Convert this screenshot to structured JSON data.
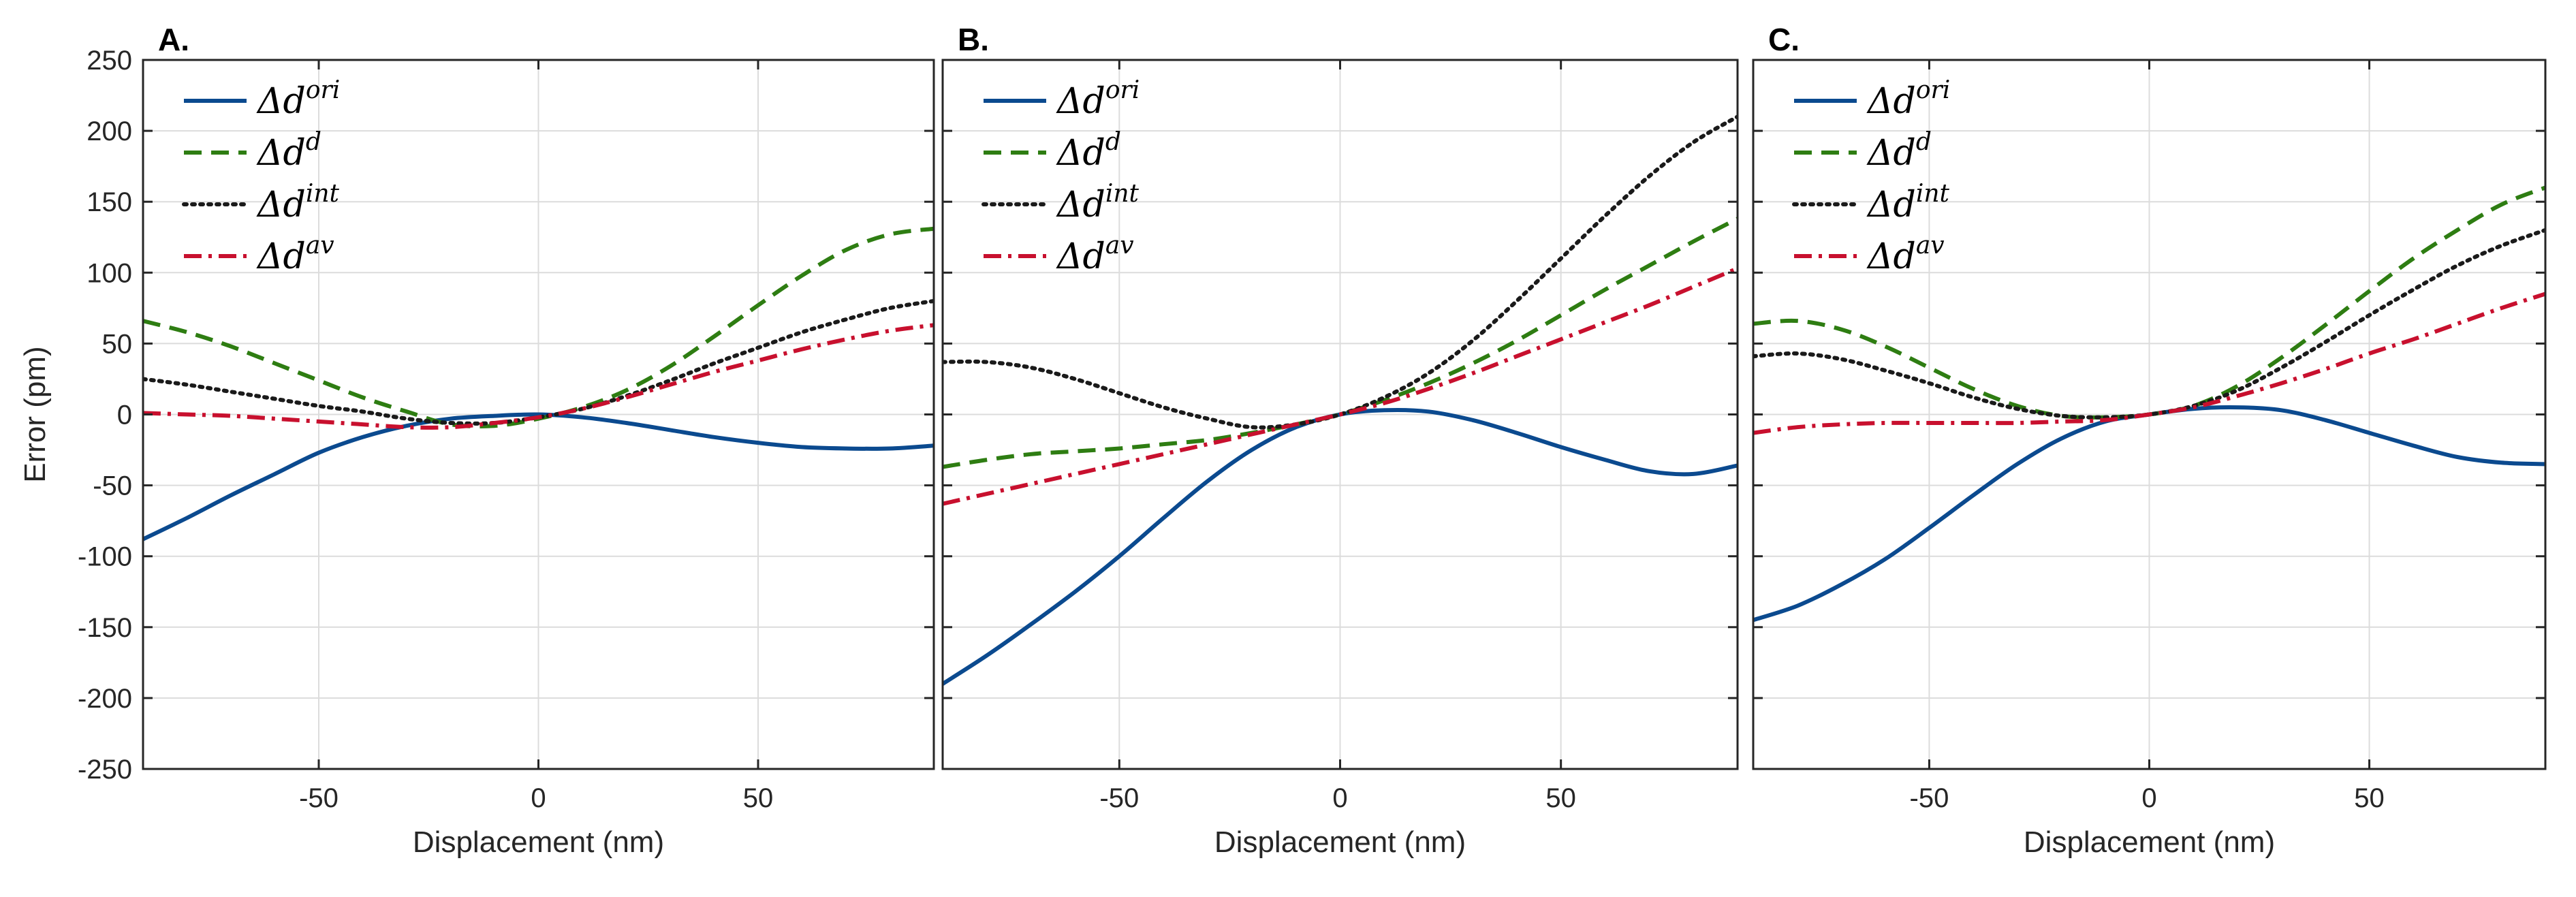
{
  "chart_data": [
    {
      "type": "line",
      "panel_label": "A.",
      "xlabel": "Displacement (nm)",
      "ylabel": "Error (pm)",
      "xlim": [
        -90,
        90
      ],
      "ylim": [
        -250,
        250
      ],
      "xticks": [
        -50,
        0,
        50
      ],
      "yticks": [
        -250,
        -200,
        -150,
        -100,
        -50,
        0,
        50,
        100,
        150,
        200,
        250
      ],
      "grid": true,
      "legend_position": "top-left",
      "series": [
        {
          "name": "Δd^ori",
          "base": "Δd",
          "sup": "ori",
          "color": "#0b4a8f",
          "dash": "solid",
          "x": [
            -90,
            -80,
            -70,
            -60,
            -50,
            -40,
            -30,
            -20,
            -10,
            0,
            10,
            20,
            30,
            40,
            50,
            60,
            70,
            80,
            90
          ],
          "y": [
            -88,
            -73,
            -57,
            -42,
            -27,
            -16,
            -8,
            -3,
            -1,
            0,
            -2,
            -6,
            -11,
            -16,
            -20,
            -23,
            -24,
            -24,
            -22
          ]
        },
        {
          "name": "Δd^d",
          "base": "Δd",
          "sup": "d",
          "color": "#2e7d12",
          "dash": "dashed",
          "x": [
            -90,
            -80,
            -70,
            -60,
            -50,
            -40,
            -30,
            -20,
            -10,
            0,
            10,
            20,
            30,
            40,
            50,
            60,
            70,
            80,
            90
          ],
          "y": [
            66,
            58,
            48,
            36,
            24,
            12,
            2,
            -7,
            -8,
            -3,
            5,
            17,
            34,
            55,
            77,
            98,
            116,
            127,
            131
          ]
        },
        {
          "name": "Δd^int",
          "base": "Δd",
          "sup": "int",
          "color": "#1a1a1a",
          "dash": "dotted",
          "x": [
            -90,
            -80,
            -70,
            -60,
            -50,
            -40,
            -30,
            -20,
            -10,
            0,
            10,
            20,
            30,
            40,
            50,
            60,
            70,
            80,
            90
          ],
          "y": [
            25,
            21,
            16,
            11,
            6,
            2,
            -3,
            -6,
            -6,
            -2,
            4,
            13,
            24,
            36,
            47,
            58,
            67,
            75,
            80
          ]
        },
        {
          "name": "Δd^av",
          "base": "Δd",
          "sup": "av",
          "color": "#c8102e",
          "dash": "dashdot",
          "x": [
            -90,
            -80,
            -70,
            -60,
            -50,
            -40,
            -30,
            -20,
            -10,
            0,
            10,
            20,
            30,
            40,
            50,
            60,
            70,
            80,
            90
          ],
          "y": [
            1,
            0,
            -1,
            -3,
            -5,
            -7,
            -9,
            -9,
            -6,
            -2,
            4,
            12,
            21,
            30,
            38,
            46,
            53,
            59,
            63
          ]
        }
      ]
    },
    {
      "type": "line",
      "panel_label": "B.",
      "xlabel": "Displacement (nm)",
      "ylabel": "",
      "xlim": [
        -90,
        90
      ],
      "ylim": [
        -250,
        250
      ],
      "xticks": [
        -50,
        0,
        50
      ],
      "yticks": [
        -250,
        -200,
        -150,
        -100,
        -50,
        0,
        50,
        100,
        150,
        200,
        250
      ],
      "grid": true,
      "legend_position": "top-left",
      "series": [
        {
          "name": "Δd^ori",
          "base": "Δd",
          "sup": "ori",
          "color": "#0b4a8f",
          "dash": "solid",
          "x": [
            -90,
            -80,
            -70,
            -60,
            -50,
            -40,
            -30,
            -20,
            -10,
            0,
            10,
            20,
            30,
            40,
            50,
            60,
            70,
            80,
            90
          ],
          "y": [
            -190,
            -170,
            -148,
            -125,
            -100,
            -73,
            -47,
            -25,
            -9,
            0,
            3,
            2,
            -4,
            -13,
            -23,
            -32,
            -40,
            -42,
            -36
          ]
        },
        {
          "name": "Δd^d",
          "base": "Δd",
          "sup": "d",
          "color": "#2e7d12",
          "dash": "dashed",
          "x": [
            -90,
            -80,
            -70,
            -60,
            -50,
            -40,
            -30,
            -20,
            -10,
            0,
            10,
            20,
            30,
            40,
            50,
            60,
            70,
            80,
            90
          ],
          "y": [
            -37,
            -32,
            -28,
            -26,
            -24,
            -21,
            -18,
            -13,
            -7,
            0,
            10,
            22,
            36,
            52,
            70,
            88,
            105,
            122,
            138
          ]
        },
        {
          "name": "Δd^int",
          "base": "Δd",
          "sup": "int",
          "color": "#1a1a1a",
          "dash": "dotted",
          "x": [
            -90,
            -80,
            -70,
            -60,
            -50,
            -40,
            -30,
            -20,
            -10,
            0,
            10,
            20,
            30,
            40,
            50,
            60,
            70,
            80,
            90
          ],
          "y": [
            37,
            37,
            33,
            25,
            15,
            5,
            -3,
            -9,
            -7,
            0,
            12,
            29,
            52,
            80,
            110,
            140,
            168,
            192,
            210
          ]
        },
        {
          "name": "Δd^av",
          "base": "Δd",
          "sup": "av",
          "color": "#c8102e",
          "dash": "dashdot",
          "x": [
            -90,
            -80,
            -70,
            -60,
            -50,
            -40,
            -30,
            -20,
            -10,
            0,
            10,
            20,
            30,
            40,
            50,
            60,
            70,
            80,
            90
          ],
          "y": [
            -63,
            -56,
            -49,
            -42,
            -35,
            -28,
            -21,
            -14,
            -7,
            0,
            8,
            18,
            29,
            41,
            53,
            65,
            77,
            90,
            103
          ]
        }
      ]
    },
    {
      "type": "line",
      "panel_label": "C.",
      "xlabel": "Displacement (nm)",
      "ylabel": "",
      "xlim": [
        -90,
        90
      ],
      "ylim": [
        -250,
        250
      ],
      "xticks": [
        -50,
        0,
        50
      ],
      "yticks": [
        -250,
        -200,
        -150,
        -100,
        -50,
        0,
        50,
        100,
        150,
        200,
        250
      ],
      "grid": true,
      "legend_position": "top-left",
      "series": [
        {
          "name": "Δd^ori",
          "base": "Δd",
          "sup": "ori",
          "color": "#0b4a8f",
          "dash": "solid",
          "x": [
            -90,
            -80,
            -70,
            -60,
            -50,
            -40,
            -30,
            -20,
            -10,
            0,
            10,
            20,
            30,
            40,
            50,
            60,
            70,
            80,
            90
          ],
          "y": [
            -145,
            -135,
            -120,
            -102,
            -80,
            -57,
            -35,
            -17,
            -5,
            0,
            4,
            5,
            3,
            -4,
            -13,
            -22,
            -30,
            -34,
            -35
          ]
        },
        {
          "name": "Δd^d",
          "base": "Δd",
          "sup": "d",
          "color": "#2e7d12",
          "dash": "dashed",
          "x": [
            -90,
            -80,
            -70,
            -60,
            -50,
            -40,
            -30,
            -20,
            -10,
            0,
            10,
            20,
            30,
            40,
            50,
            60,
            70,
            80,
            90
          ],
          "y": [
            64,
            66,
            60,
            48,
            33,
            18,
            6,
            -1,
            -2,
            0,
            6,
            20,
            40,
            63,
            87,
            110,
            130,
            148,
            160
          ]
        },
        {
          "name": "Δd^int",
          "base": "Δd",
          "sup": "int",
          "color": "#1a1a1a",
          "dash": "dotted",
          "x": [
            -90,
            -80,
            -70,
            -60,
            -50,
            -40,
            -30,
            -20,
            -10,
            0,
            10,
            20,
            30,
            40,
            50,
            60,
            70,
            80,
            90
          ],
          "y": [
            41,
            43,
            39,
            31,
            22,
            12,
            4,
            -1,
            -2,
            0,
            6,
            17,
            33,
            51,
            70,
            88,
            105,
            119,
            130
          ]
        },
        {
          "name": "Δd^av",
          "base": "Δd",
          "sup": "av",
          "color": "#c8102e",
          "dash": "dashdot",
          "x": [
            -90,
            -80,
            -70,
            -60,
            -50,
            -40,
            -30,
            -20,
            -10,
            0,
            10,
            20,
            30,
            40,
            50,
            60,
            70,
            80,
            90
          ],
          "y": [
            -13,
            -9,
            -7,
            -6,
            -6,
            -6,
            -6,
            -5,
            -4,
            0,
            5,
            13,
            22,
            32,
            43,
            53,
            64,
            75,
            85
          ]
        }
      ]
    }
  ]
}
